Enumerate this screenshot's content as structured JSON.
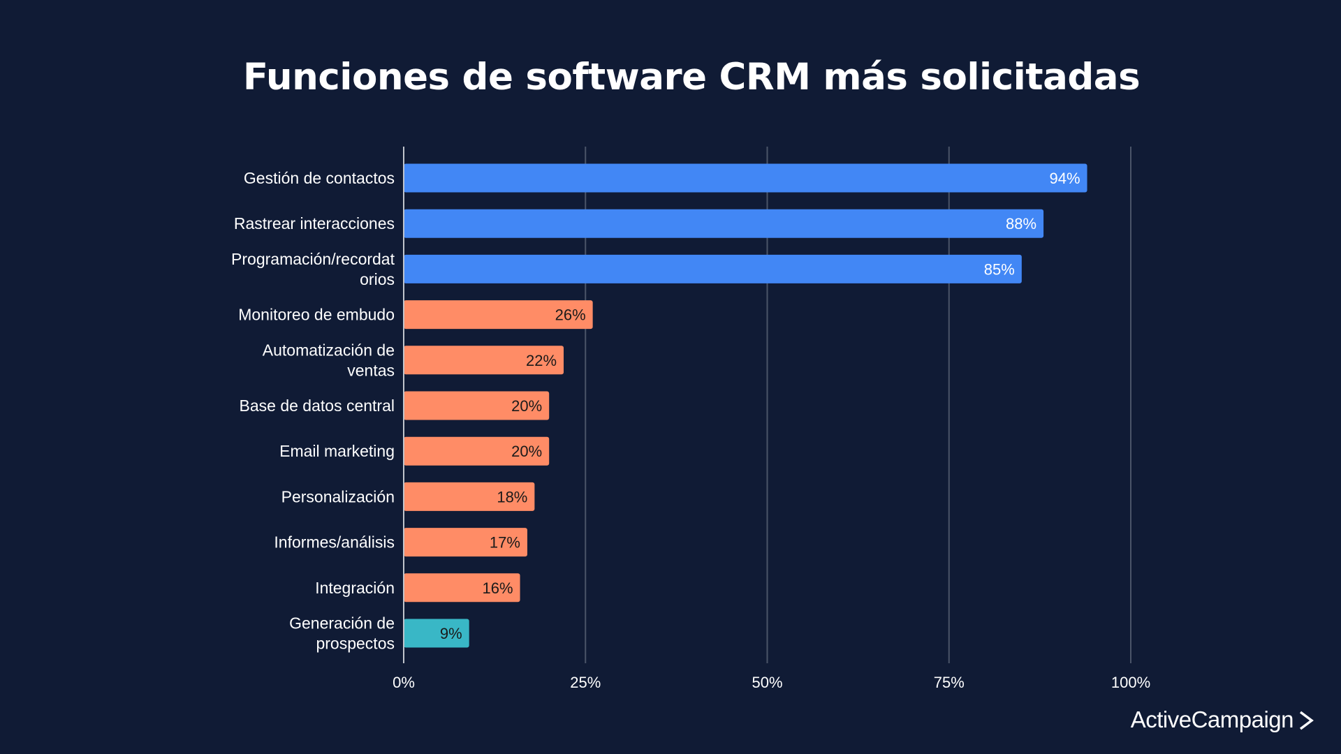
{
  "chart_data": {
    "type": "bar",
    "orientation": "horizontal",
    "title": "Funciones de software CRM más solicitadas",
    "categories": [
      [
        "Gestión de contactos"
      ],
      [
        "Rastrear interacciones"
      ],
      [
        "Programación/recordat",
        "orios"
      ],
      [
        "Monitoreo de embudo"
      ],
      [
        "Automatización de",
        "ventas"
      ],
      [
        "Base de datos central"
      ],
      [
        "Email marketing"
      ],
      [
        "Personalización"
      ],
      [
        "Informes/análisis"
      ],
      [
        "Integración"
      ],
      [
        "Generación de",
        "prospectos"
      ]
    ],
    "values": [
      94,
      88,
      85,
      26,
      22,
      20,
      20,
      18,
      17,
      16,
      9
    ],
    "value_labels": [
      "94%",
      "88%",
      "85%",
      "26%",
      "22%",
      "20%",
      "20%",
      "18%",
      "17%",
      "16%",
      "9%"
    ],
    "bar_colors": [
      "#4287f5",
      "#4287f5",
      "#4287f5",
      "#ff8c66",
      "#ff8c66",
      "#ff8c66",
      "#ff8c66",
      "#ff8c66",
      "#ff8c66",
      "#ff8c66",
      "#39b7c6"
    ],
    "label_colors": [
      "#ffffff",
      "#ffffff",
      "#ffffff",
      "#1a1a1a",
      "#1a1a1a",
      "#1a1a1a",
      "#1a1a1a",
      "#1a1a1a",
      "#1a1a1a",
      "#1a1a1a",
      "#1a1a1a"
    ],
    "xlim": [
      0,
      100
    ],
    "xticks": [
      0,
      25,
      50,
      75,
      100
    ],
    "xtick_labels": [
      "0%",
      "25%",
      "50%",
      "75%",
      "100%"
    ],
    "grid": true,
    "xlabel": "",
    "ylabel": ""
  },
  "colors": {
    "background": "#101b35",
    "text": "#ffffff",
    "gridline": "#4a5468"
  },
  "brand": {
    "logo_text": "ActiveCampaign"
  }
}
